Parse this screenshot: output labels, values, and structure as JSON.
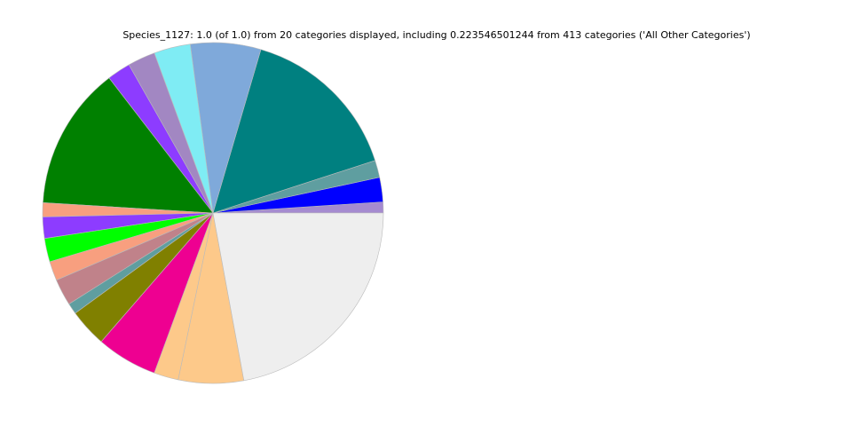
{
  "chart_data": {
    "type": "pie",
    "title": "Species_1127: 1.0 (of 1.0) from 20 categories displayed, including 0.223546501244 from 413 categories ('All Other Categories')",
    "start_angle_deg": 0,
    "direction": "counterclockwise",
    "slices": [
      {
        "value": 0.0105,
        "color": "#a58bd0"
      },
      {
        "value": 0.0235,
        "color": "#0000ff"
      },
      {
        "value": 0.0165,
        "color": "#5f9ea0"
      },
      {
        "value": 0.1565,
        "color": "#008080"
      },
      {
        "value": 0.0675,
        "color": "#7fa9da"
      },
      {
        "value": 0.035,
        "color": "#7fecf4"
      },
      {
        "value": 0.0265,
        "color": "#a287c2"
      },
      {
        "value": 0.0225,
        "color": "#8d3cff"
      },
      {
        "value": 0.1375,
        "color": "#008000"
      },
      {
        "value": 0.0135,
        "color": "#f89f7f"
      },
      {
        "value": 0.0205,
        "color": "#8d3cff"
      },
      {
        "value": 0.0225,
        "color": "#00ff00"
      },
      {
        "value": 0.0185,
        "color": "#f89f7f"
      },
      {
        "value": 0.0255,
        "color": "#c0828a"
      },
      {
        "value": 0.0105,
        "color": "#5f9ea0"
      },
      {
        "value": 0.0365,
        "color": "#808000"
      },
      {
        "value": 0.0585,
        "color": "#ee0091"
      },
      {
        "value": 0.0235,
        "color": "#fdc98a"
      },
      {
        "value": 0.0625,
        "color": "#fdc98a"
      },
      {
        "value": 0.2235,
        "color": "#eeeeee"
      }
    ]
  }
}
